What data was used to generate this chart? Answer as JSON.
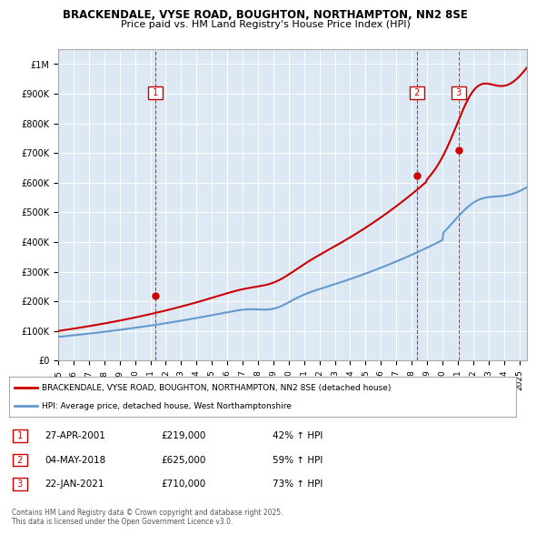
{
  "title1": "BRACKENDALE, VYSE ROAD, BOUGHTON, NORTHAMPTON, NN2 8SE",
  "title2": "Price paid vs. HM Land Registry's House Price Index (HPI)",
  "legend_line1": "BRACKENDALE, VYSE ROAD, BOUGHTON, NORTHAMPTON, NN2 8SE (detached house)",
  "legend_line2": "HPI: Average price, detached house, West Northamptonshire",
  "footer": "Contains HM Land Registry data © Crown copyright and database right 2025.\nThis data is licensed under the Open Government Licence v3.0.",
  "transactions": [
    {
      "num": 1,
      "date": "27-APR-2001",
      "price": 219000,
      "pct": "42%",
      "dir": "↑",
      "year_x": 2001.32
    },
    {
      "num": 2,
      "date": "04-MAY-2018",
      "price": 625000,
      "pct": "59%",
      "dir": "↑",
      "year_x": 2018.34
    },
    {
      "num": 3,
      "date": "22-JAN-2021",
      "price": 710000,
      "pct": "73%",
      "dir": "↑",
      "year_x": 2021.05
    }
  ],
  "background_color": "#dce9f5",
  "plot_bg_color": "#dce9f5",
  "red_line_color": "#cc0000",
  "blue_line_color": "#6699cc",
  "ylim": [
    0,
    1050000
  ],
  "xlim_start": 1995,
  "xlim_end": 2025.5
}
